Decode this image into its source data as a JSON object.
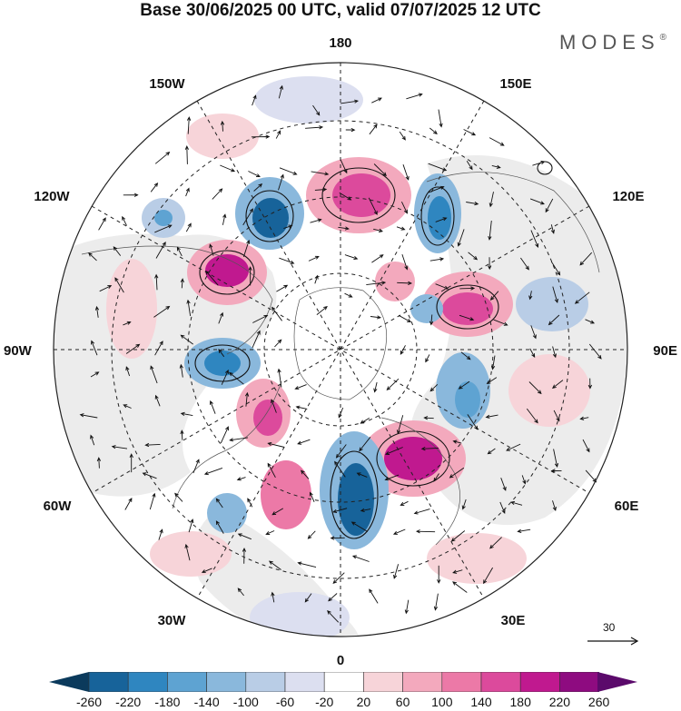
{
  "title": "Base 30/06/2025 00 UTC, valid 07/07/2025 12 UTC",
  "brand": {
    "name": "MODES",
    "mark": "®"
  },
  "longitude_labels": {
    "top": "180",
    "bottom": "0",
    "left": "90W",
    "right": "90E",
    "upper_left_1": "150W",
    "upper_left_2": "120W",
    "upper_right_1": "150E",
    "upper_right_2": "120E",
    "lower_left_1": "60W",
    "lower_left_2": "30W",
    "lower_right_1": "60E",
    "lower_right_2": "30E"
  },
  "vector_scale": {
    "label": "30"
  },
  "colorbar": {
    "ticks": [
      "-260",
      "-220",
      "-180",
      "-140",
      "-100",
      "-60",
      "-20",
      "20",
      "60",
      "100",
      "140",
      "180",
      "220",
      "260"
    ],
    "colors": [
      "#0b3a5c",
      "#17639a",
      "#2f86c0",
      "#5ea3d2",
      "#8ab8dc",
      "#b9cde6",
      "#dcdff0",
      "#ffffff",
      "#f7d4d9",
      "#f3a9bd",
      "#ec79a7",
      "#dc4a9c",
      "#c0198f",
      "#8e0b80",
      "#5b0a6b"
    ]
  }
}
